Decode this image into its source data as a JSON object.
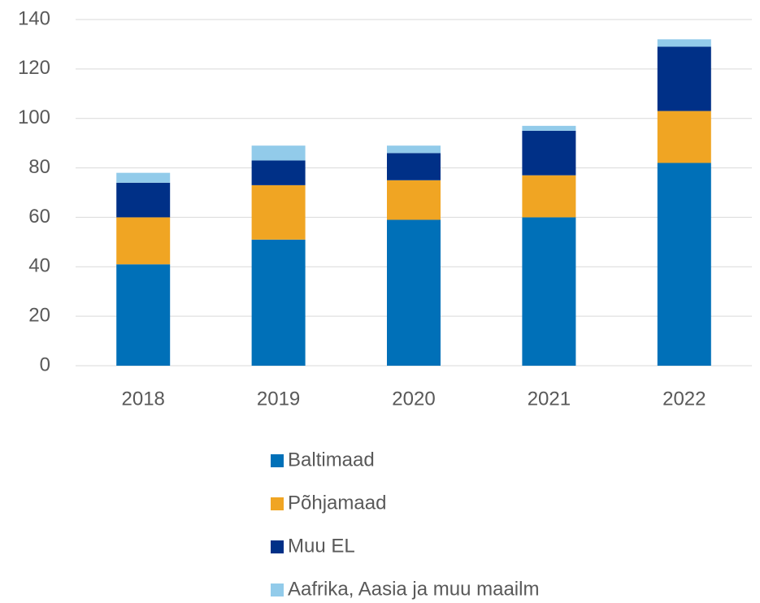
{
  "chart_data": {
    "type": "stacked_bar",
    "categories": [
      "2018",
      "2019",
      "2020",
      "2021",
      "2022"
    ],
    "series": [
      {
        "name": "Baltimaad",
        "color": "#0070b8",
        "values": [
          41,
          51,
          59,
          60,
          82
        ]
      },
      {
        "name": "Põhjamaad",
        "color": "#f0a523",
        "values": [
          19,
          22,
          16,
          17,
          21
        ]
      },
      {
        "name": "Muu EL",
        "color": "#003087",
        "values": [
          14,
          10,
          11,
          18,
          26
        ]
      },
      {
        "name": "Aafrika, Aasia ja muu maailm",
        "color": "#92cbea",
        "values": [
          4,
          6,
          3,
          2,
          3
        ]
      }
    ],
    "ylim": [
      0,
      140
    ],
    "yticks": [
      0,
      20,
      40,
      60,
      80,
      100,
      120,
      140
    ],
    "grid": true,
    "legend": "bottom"
  }
}
